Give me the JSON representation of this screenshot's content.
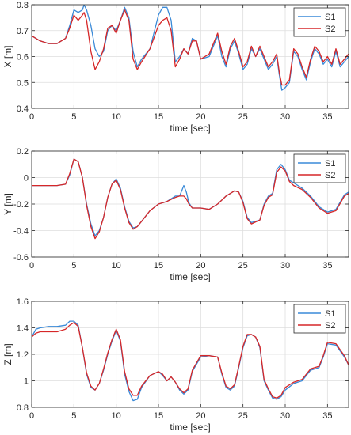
{
  "chart_data": [
    {
      "type": "line",
      "xlabel": "time [sec]",
      "ylabel": "X [m]",
      "xlim": [
        0,
        37.5
      ],
      "ylim": [
        0.4,
        0.8
      ],
      "xticks": [
        0,
        5,
        10,
        15,
        20,
        25,
        30,
        35
      ],
      "xtick_labels": [
        "0",
        "5",
        "10",
        "15",
        "20",
        "25",
        "30",
        "35"
      ],
      "yticks": [
        0.4,
        0.5,
        0.6,
        0.7,
        0.8
      ],
      "ytick_labels": [
        "0.4",
        "0.5",
        "0.6",
        "0.7",
        "0.8"
      ],
      "grid": true,
      "legend_position": "top-right",
      "series": [
        {
          "name": "S1",
          "color": "#3a8ad8",
          "x": [
            0,
            0.5,
            1,
            2,
            3,
            4,
            4.5,
            5,
            5.5,
            6,
            6.2,
            6.5,
            7,
            7.5,
            8,
            8.5,
            9,
            9.5,
            10,
            10.5,
            11,
            11.5,
            12,
            12.5,
            13,
            14,
            15,
            15.5,
            16,
            16.5,
            17,
            17.5,
            18,
            18.5,
            19,
            19.5,
            20,
            21,
            22,
            22.5,
            23,
            23.5,
            24,
            24.5,
            25,
            25.5,
            26,
            26.5,
            27,
            27.5,
            28,
            28.5,
            29,
            29.3,
            29.6,
            30,
            30.5,
            31,
            31.5,
            32,
            32.5,
            33,
            33.5,
            34,
            34.5,
            35,
            35.5,
            36,
            36.5,
            37,
            37.5
          ],
          "y": [
            0.68,
            0.67,
            0.66,
            0.65,
            0.65,
            0.67,
            0.72,
            0.78,
            0.77,
            0.78,
            0.8,
            0.78,
            0.72,
            0.63,
            0.6,
            0.62,
            0.7,
            0.72,
            0.7,
            0.74,
            0.79,
            0.75,
            0.62,
            0.56,
            0.59,
            0.63,
            0.76,
            0.79,
            0.79,
            0.74,
            0.58,
            0.6,
            0.63,
            0.61,
            0.67,
            0.66,
            0.59,
            0.6,
            0.68,
            0.6,
            0.56,
            0.63,
            0.66,
            0.61,
            0.55,
            0.57,
            0.63,
            0.6,
            0.63,
            0.59,
            0.55,
            0.57,
            0.6,
            0.53,
            0.47,
            0.48,
            0.5,
            0.62,
            0.6,
            0.55,
            0.51,
            0.58,
            0.63,
            0.61,
            0.57,
            0.59,
            0.56,
            0.62,
            0.56,
            0.58,
            0.6
          ]
        },
        {
          "name": "S2",
          "color": "#d62728",
          "x": [
            0,
            0.5,
            1,
            2,
            3,
            4,
            4.5,
            5,
            5.5,
            6,
            6.2,
            6.5,
            7,
            7.5,
            8,
            8.5,
            9,
            9.5,
            10,
            10.5,
            11,
            11.5,
            12,
            12.5,
            13,
            14,
            15,
            15.5,
            16,
            16.5,
            17,
            17.5,
            18,
            18.5,
            19,
            19.5,
            20,
            21,
            22,
            22.5,
            23,
            23.5,
            24,
            24.5,
            25,
            25.5,
            26,
            26.5,
            27,
            27.5,
            28,
            28.5,
            29,
            29.3,
            29.6,
            30,
            30.5,
            31,
            31.5,
            32,
            32.5,
            33,
            33.5,
            34,
            34.5,
            35,
            35.5,
            36,
            36.5,
            37,
            37.5
          ],
          "y": [
            0.68,
            0.67,
            0.66,
            0.65,
            0.65,
            0.67,
            0.71,
            0.76,
            0.74,
            0.76,
            0.77,
            0.74,
            0.62,
            0.55,
            0.58,
            0.63,
            0.71,
            0.72,
            0.69,
            0.74,
            0.78,
            0.74,
            0.59,
            0.55,
            0.58,
            0.63,
            0.72,
            0.74,
            0.75,
            0.7,
            0.56,
            0.59,
            0.63,
            0.61,
            0.66,
            0.66,
            0.59,
            0.61,
            0.69,
            0.62,
            0.57,
            0.64,
            0.67,
            0.62,
            0.56,
            0.58,
            0.64,
            0.6,
            0.64,
            0.6,
            0.56,
            0.58,
            0.61,
            0.54,
            0.49,
            0.49,
            0.51,
            0.63,
            0.61,
            0.56,
            0.52,
            0.59,
            0.64,
            0.62,
            0.58,
            0.6,
            0.57,
            0.63,
            0.57,
            0.59,
            0.61
          ]
        }
      ]
    },
    {
      "type": "line",
      "xlabel": "time [sec]",
      "ylabel": "Y [m]",
      "xlim": [
        0,
        37.5
      ],
      "ylim": [
        -0.6,
        0.2
      ],
      "xticks": [
        0,
        5,
        10,
        15,
        20,
        25,
        30,
        35
      ],
      "xtick_labels": [
        "0",
        "5",
        "10",
        "15",
        "20",
        "25",
        "30",
        "35"
      ],
      "yticks": [
        -0.6,
        -0.4,
        -0.2,
        0,
        0.2
      ],
      "ytick_labels": [
        "-0.6",
        "-0.4",
        "-0.2",
        "0",
        "0.2"
      ],
      "grid": true,
      "legend_position": "top-right",
      "series": [
        {
          "name": "S1",
          "color": "#3a8ad8",
          "x": [
            0,
            1,
            2,
            3,
            4,
            4.5,
            5,
            5.5,
            6,
            6.5,
            7,
            7.5,
            8,
            8.5,
            9,
            9.5,
            10,
            10.5,
            11,
            11.5,
            12,
            12.5,
            13,
            14,
            15,
            16,
            17,
            17.5,
            18,
            18.3,
            18.6,
            19,
            20,
            21,
            22,
            23,
            24,
            24.5,
            25,
            25.5,
            26,
            27,
            27.5,
            28,
            28.5,
            29,
            29.5,
            30,
            30.5,
            31,
            32,
            33,
            34,
            35,
            36,
            37,
            37.5
          ],
          "y": [
            -0.06,
            -0.06,
            -0.06,
            -0.06,
            -0.05,
            0.02,
            0.14,
            0.12,
            0.0,
            -0.2,
            -0.35,
            -0.44,
            -0.4,
            -0.3,
            -0.15,
            -0.05,
            -0.01,
            -0.08,
            -0.22,
            -0.33,
            -0.38,
            -0.37,
            -0.33,
            -0.25,
            -0.2,
            -0.18,
            -0.14,
            -0.14,
            -0.06,
            -0.11,
            -0.19,
            -0.23,
            -0.23,
            -0.24,
            -0.2,
            -0.14,
            -0.1,
            -0.11,
            -0.18,
            -0.3,
            -0.34,
            -0.32,
            -0.2,
            -0.14,
            -0.12,
            0.06,
            0.1,
            0.06,
            -0.02,
            -0.04,
            -0.08,
            -0.14,
            -0.22,
            -0.26,
            -0.24,
            -0.13,
            -0.11
          ]
        },
        {
          "name": "S2",
          "color": "#d62728",
          "x": [
            0,
            1,
            2,
            3,
            4,
            4.5,
            5,
            5.5,
            6,
            6.5,
            7,
            7.5,
            8,
            8.5,
            9,
            9.5,
            10,
            10.5,
            11,
            11.5,
            12,
            12.5,
            13,
            14,
            15,
            16,
            17,
            17.5,
            18,
            18.3,
            18.6,
            19,
            20,
            21,
            22,
            23,
            24,
            24.5,
            25,
            25.5,
            26,
            27,
            27.5,
            28,
            28.5,
            29,
            29.5,
            30,
            30.5,
            31,
            32,
            33,
            34,
            35,
            36,
            37,
            37.5
          ],
          "y": [
            -0.06,
            -0.06,
            -0.06,
            -0.06,
            -0.05,
            0.03,
            0.14,
            0.12,
            0.0,
            -0.21,
            -0.37,
            -0.46,
            -0.41,
            -0.3,
            -0.15,
            -0.05,
            -0.02,
            -0.09,
            -0.23,
            -0.34,
            -0.39,
            -0.37,
            -0.33,
            -0.25,
            -0.2,
            -0.18,
            -0.15,
            -0.14,
            -0.14,
            -0.16,
            -0.2,
            -0.23,
            -0.23,
            -0.24,
            -0.2,
            -0.14,
            -0.1,
            -0.11,
            -0.19,
            -0.31,
            -0.35,
            -0.32,
            -0.21,
            -0.15,
            -0.13,
            0.04,
            0.08,
            0.05,
            -0.03,
            -0.06,
            -0.09,
            -0.15,
            -0.23,
            -0.27,
            -0.25,
            -0.14,
            -0.12
          ]
        }
      ]
    },
    {
      "type": "line",
      "xlabel": "time [sec]",
      "ylabel": "Z [m]",
      "xlim": [
        0,
        37.5
      ],
      "ylim": [
        0.8,
        1.6
      ],
      "xticks": [
        0,
        5,
        10,
        15,
        20,
        25,
        30,
        35
      ],
      "xtick_labels": [
        "0",
        "5",
        "10",
        "15",
        "20",
        "25",
        "30",
        "35"
      ],
      "yticks": [
        0.8,
        1.0,
        1.2,
        1.4,
        1.6
      ],
      "ytick_labels": [
        "0.8",
        "1",
        "1.2",
        "1.4",
        "1.6"
      ],
      "grid": true,
      "legend_position": "top-right",
      "series": [
        {
          "name": "S1",
          "color": "#3a8ad8",
          "x": [
            0,
            0.5,
            1,
            2,
            3,
            4,
            4.5,
            5,
            5.5,
            6,
            6.5,
            7,
            7.5,
            8,
            8.5,
            9,
            9.5,
            10,
            10.5,
            11,
            11.5,
            12,
            12.5,
            13,
            14,
            15,
            15.5,
            16,
            16.5,
            17,
            17.5,
            18,
            18.5,
            19,
            20,
            21,
            22,
            22.5,
            23,
            23.5,
            24,
            24.5,
            25,
            25.5,
            26,
            26.5,
            27,
            27.5,
            28,
            28.5,
            29,
            29.5,
            30,
            31,
            32,
            33,
            34,
            34.5,
            35,
            36,
            37,
            37.5
          ],
          "y": [
            1.33,
            1.39,
            1.4,
            1.41,
            1.41,
            1.42,
            1.45,
            1.45,
            1.42,
            1.25,
            1.05,
            0.95,
            0.93,
            0.98,
            1.08,
            1.2,
            1.3,
            1.38,
            1.3,
            1.05,
            0.92,
            0.85,
            0.86,
            0.95,
            1.04,
            1.07,
            1.04,
            1.0,
            1.03,
            0.99,
            0.93,
            0.9,
            0.93,
            1.07,
            1.18,
            1.19,
            1.18,
            1.05,
            0.95,
            0.93,
            0.96,
            1.1,
            1.25,
            1.34,
            1.35,
            1.33,
            1.25,
            1.0,
            0.93,
            0.87,
            0.86,
            0.88,
            0.93,
            0.98,
            1.0,
            1.08,
            1.1,
            1.18,
            1.28,
            1.27,
            1.18,
            1.12
          ]
        },
        {
          "name": "S2",
          "color": "#d62728",
          "x": [
            0,
            0.5,
            1,
            2,
            3,
            4,
            4.5,
            5,
            5.5,
            6,
            6.5,
            7,
            7.5,
            8,
            8.5,
            9,
            9.5,
            10,
            10.5,
            11,
            11.5,
            12,
            12.5,
            13,
            14,
            15,
            15.5,
            16,
            16.5,
            17,
            17.5,
            18,
            18.5,
            19,
            20,
            21,
            22,
            22.5,
            23,
            23.5,
            24,
            24.5,
            25,
            25.5,
            26,
            26.5,
            27,
            27.5,
            28,
            28.5,
            29,
            29.5,
            30,
            31,
            32,
            33,
            34,
            34.5,
            35,
            36,
            37,
            37.5
          ],
          "y": [
            1.33,
            1.36,
            1.37,
            1.37,
            1.37,
            1.39,
            1.42,
            1.44,
            1.41,
            1.25,
            1.06,
            0.96,
            0.93,
            0.98,
            1.09,
            1.21,
            1.31,
            1.39,
            1.31,
            1.07,
            0.94,
            0.89,
            0.89,
            0.96,
            1.04,
            1.07,
            1.05,
            1.0,
            1.03,
            0.99,
            0.94,
            0.91,
            0.94,
            1.08,
            1.19,
            1.19,
            1.18,
            1.06,
            0.96,
            0.94,
            0.97,
            1.11,
            1.26,
            1.35,
            1.35,
            1.33,
            1.26,
            1.01,
            0.94,
            0.88,
            0.87,
            0.89,
            0.95,
            0.99,
            1.01,
            1.09,
            1.11,
            1.19,
            1.29,
            1.28,
            1.19,
            1.12
          ]
        }
      ]
    }
  ]
}
